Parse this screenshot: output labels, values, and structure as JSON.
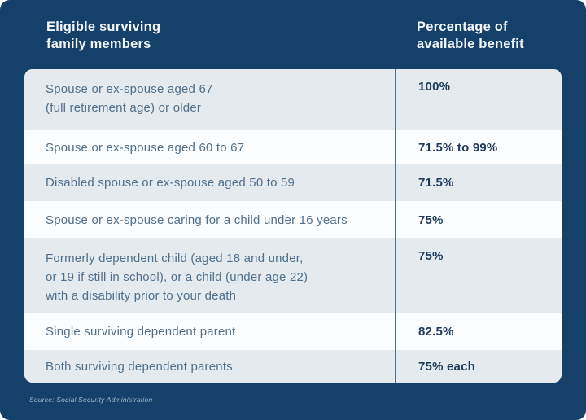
{
  "header": {
    "left_title": "Eligible surviving\nfamily members",
    "right_title": "Percentage of\navailable benefit"
  },
  "table": {
    "rows": [
      {
        "member": "Spouse or ex-spouse aged 67\n(full retirement age) or older",
        "percentage": "100%"
      },
      {
        "member": "Spouse or ex-spouse aged 60 to 67",
        "percentage": "71.5% to 99%"
      },
      {
        "member": "Disabled spouse or ex-spouse aged 50 to 59",
        "percentage": "71.5%"
      },
      {
        "member": "Spouse or ex-spouse caring for a child under 16 years",
        "percentage": "75%"
      },
      {
        "member": "Formerly dependent child (aged 18 and under,\nor 19 if still in school), or a child (under age 22)\nwith a disability prior to your death",
        "percentage": "75%"
      },
      {
        "member": "Single surviving dependent parent",
        "percentage": "82.5%"
      },
      {
        "member": "Both surviving dependent parents",
        "percentage": "75% each"
      }
    ]
  },
  "footer": {
    "source": "Source: Social Security Administration"
  },
  "colors": {
    "card_background": "#14406a",
    "row_shaded": "#e5eaef",
    "row_plain": "#fcfdfe",
    "divider": "#4c7293",
    "member_text": "#4f708c",
    "percentage_text": "#1d3c5c",
    "header_text": "#f4f8fb",
    "source_text": "#a3b8ca"
  },
  "chart_data": {
    "type": "table",
    "columns": [
      "Eligible surviving family members",
      "Percentage of available benefit"
    ],
    "rows": [
      [
        "Spouse or ex-spouse aged 67 (full retirement age) or older",
        "100%"
      ],
      [
        "Spouse or ex-spouse aged 60 to 67",
        "71.5% to 99%"
      ],
      [
        "Disabled spouse or ex-spouse aged 50 to 59",
        "71.5%"
      ],
      [
        "Spouse or ex-spouse caring for a child under 16 years",
        "75%"
      ],
      [
        "Formerly dependent child (aged 18 and under, or 19 if still in school), or a child (under age 22) with a disability prior to your death",
        "75%"
      ],
      [
        "Single surviving dependent parent",
        "82.5%"
      ],
      [
        "Both surviving dependent parents",
        "75% each"
      ]
    ],
    "source": "Source: Social Security Administration",
    "layout": {
      "shaded_rows": [
        0,
        2,
        4,
        6
      ],
      "divider_between_columns": true
    }
  }
}
